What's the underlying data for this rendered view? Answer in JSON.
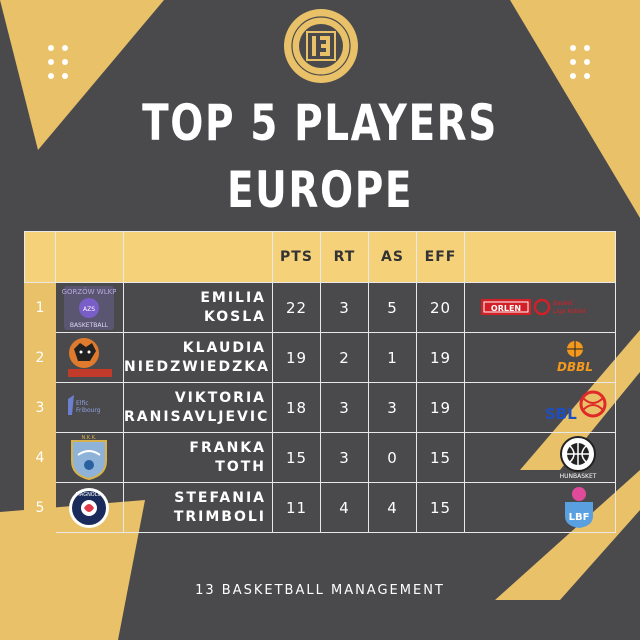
{
  "poster": {
    "title_line1": "TOP 5 PLAYERS",
    "title_line2": "EUROPE",
    "footer": "13 BASKETBALL MANAGEMENT",
    "colors": {
      "background": "#4a4a4d",
      "gold": "#e9c169",
      "header": "#f5d27a",
      "text": "#ffffff"
    },
    "logo_icon": "13-basketball-logo-icon"
  },
  "table": {
    "columns": [
      "PTS",
      "RT",
      "AS",
      "EFF"
    ],
    "rows": [
      {
        "rank": "1",
        "name_line1": "EMILIA",
        "name_line2": "KOSLA",
        "pts": "22",
        "rt": "3",
        "as": "5",
        "eff": "20",
        "club_icon": "gorzow-club-badge",
        "league_icon": "orlen-basket-liga-kobiet-logo"
      },
      {
        "rank": "2",
        "name_line1": "KLAUDIA",
        "name_line2": "NIEDZWIEDZKA",
        "pts": "19",
        "rt": "2",
        "as": "1",
        "eff": "19",
        "club_icon": "panther-club-badge",
        "league_icon": "dbbl-logo"
      },
      {
        "rank": "3",
        "name_line1": "VIKTORIA",
        "name_line2": "RANISAVLJEVIC",
        "pts": "18",
        "rt": "3",
        "as": "3",
        "eff": "19",
        "club_icon": "elfic-fribourg-badge",
        "league_icon": "sbl-logo"
      },
      {
        "rank": "4",
        "name_line1": "FRANKA",
        "name_line2": "TOTH",
        "pts": "15",
        "rt": "3",
        "as": "0",
        "eff": "15",
        "club_icon": "nkk-shield-badge",
        "league_icon": "hunbasket-logo"
      },
      {
        "rank": "5",
        "name_line1": "STEFANIA",
        "name_line2": "TRIMBOLI",
        "pts": "11",
        "rt": "4",
        "as": "4",
        "eff": "15",
        "club_icon": "magnolia-campobasso-badge",
        "league_icon": "lbf-logo"
      }
    ]
  }
}
